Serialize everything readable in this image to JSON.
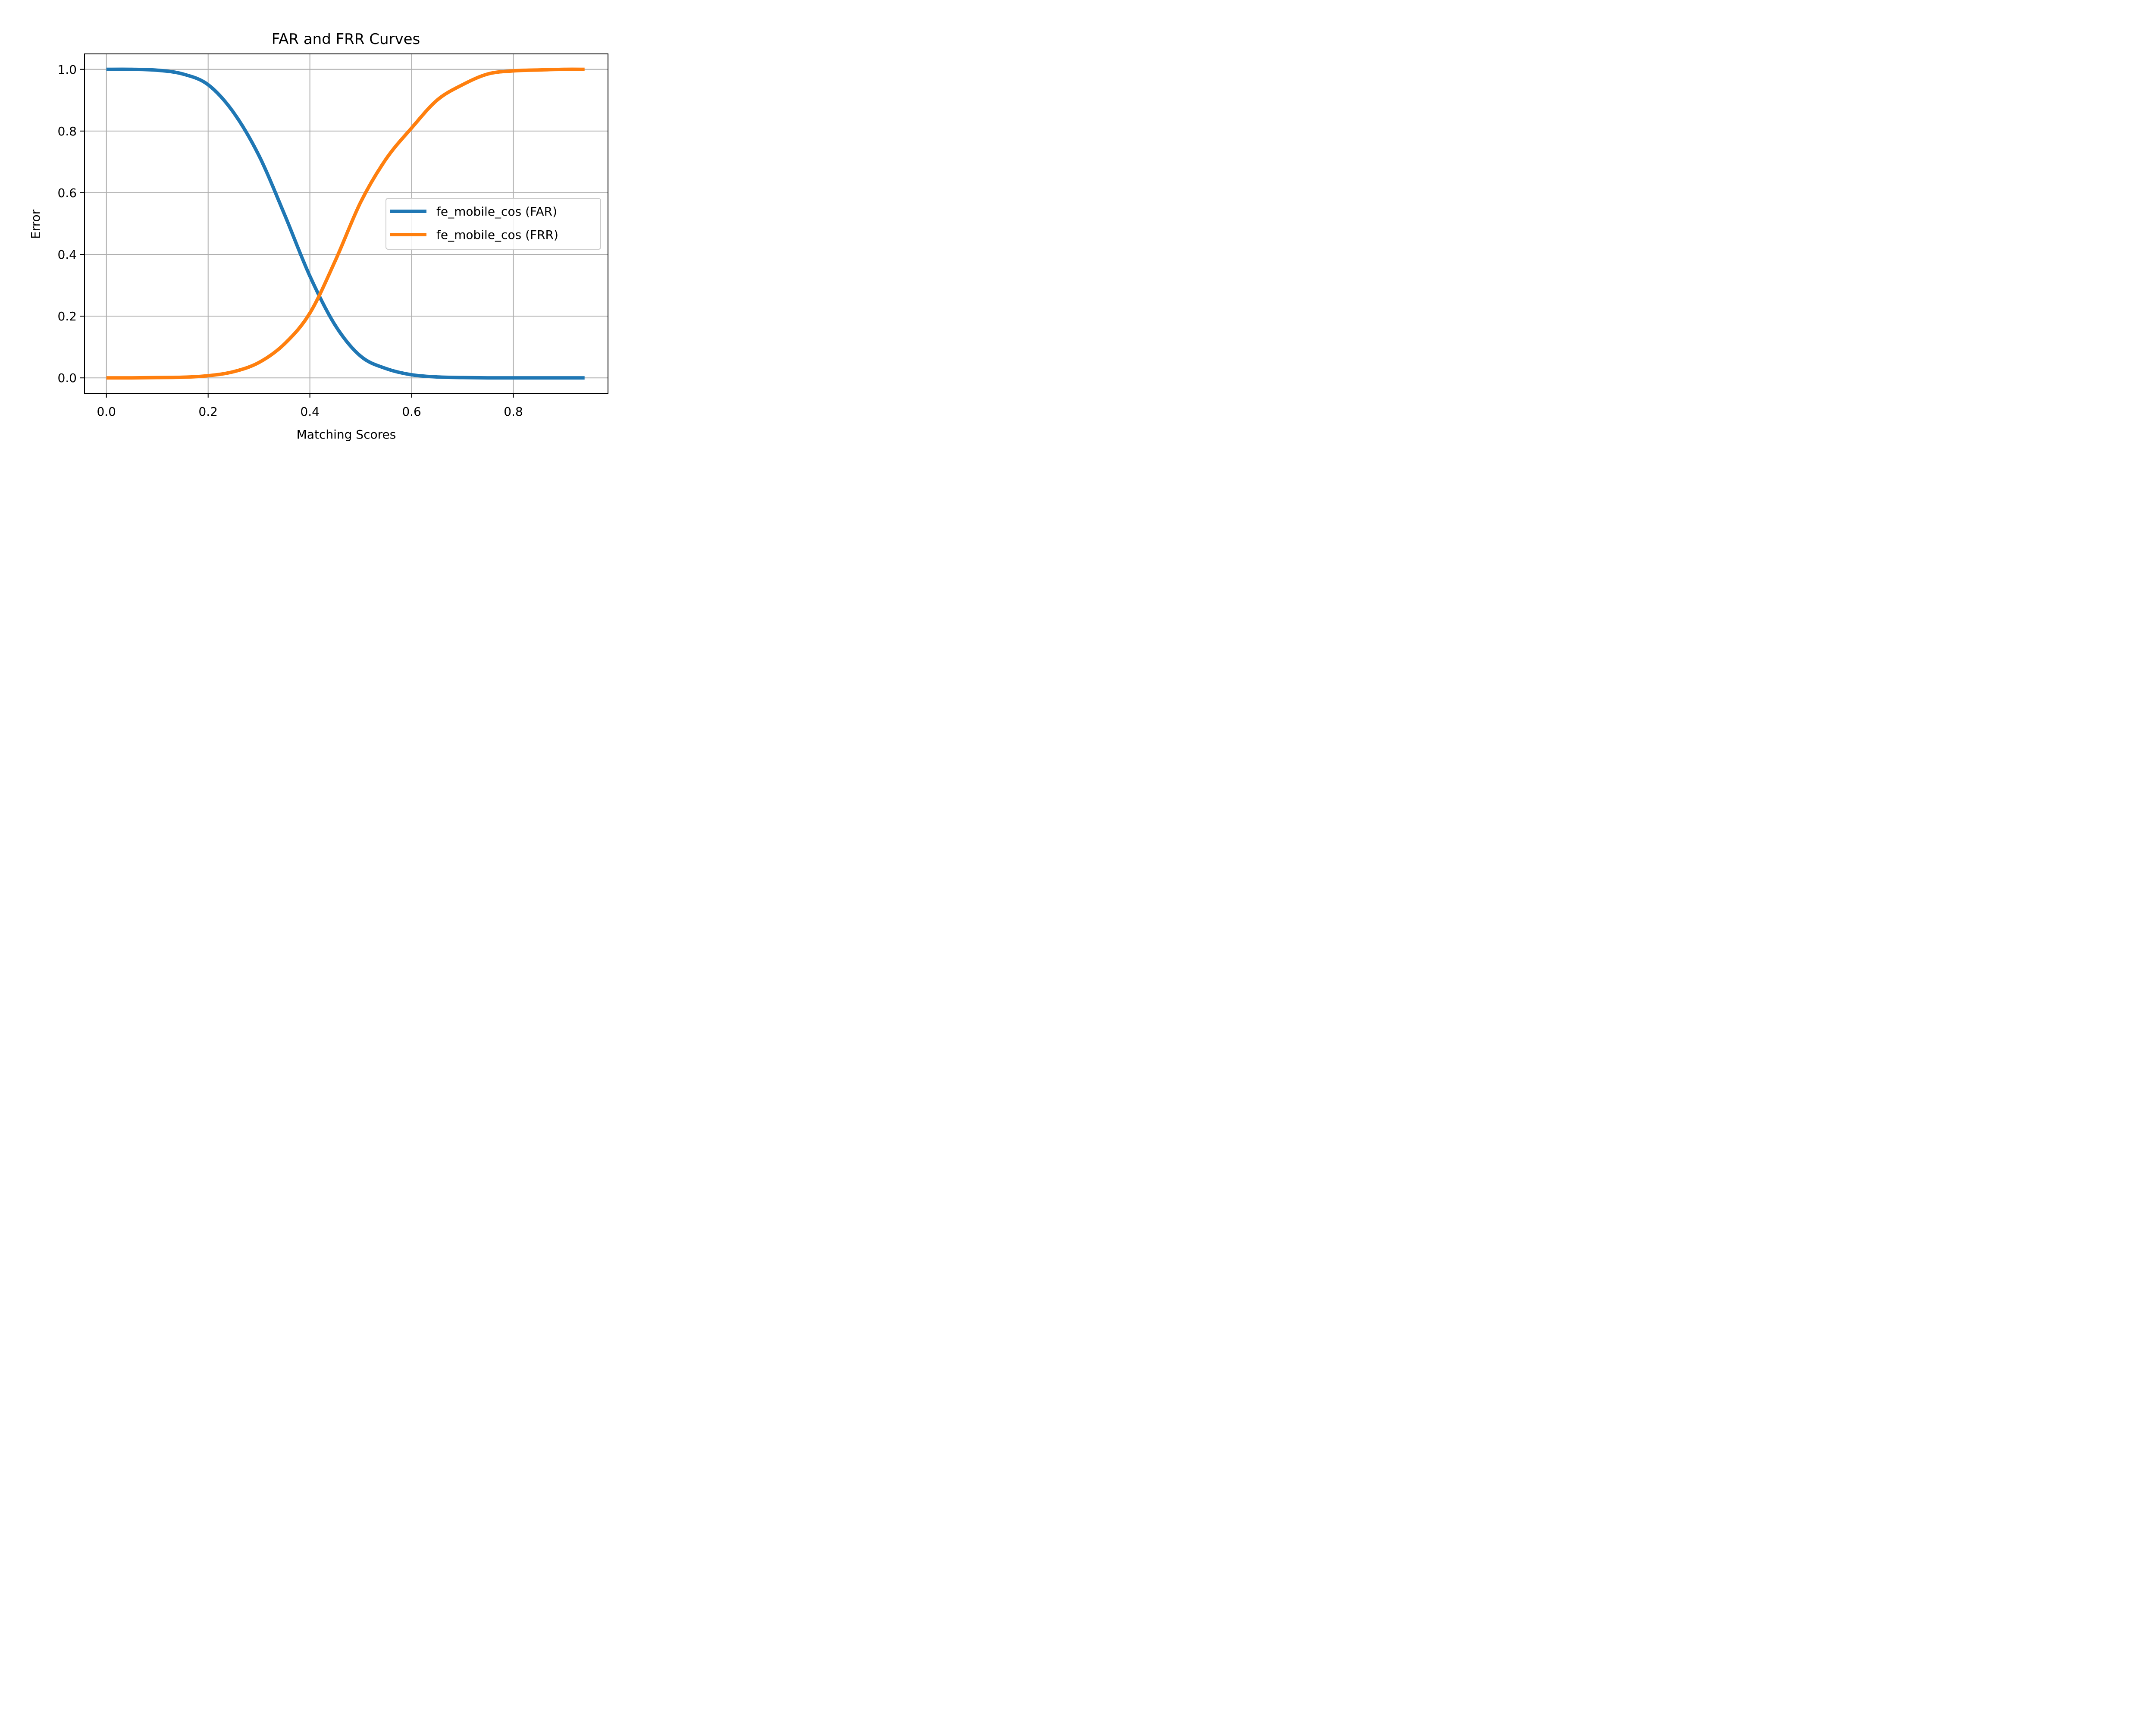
{
  "chart_data": {
    "type": "line",
    "title": "FAR and FRR Curves",
    "xlabel": "Matching Scores",
    "ylabel": "Error",
    "xlim": [
      -0.043,
      0.986
    ],
    "ylim": [
      -0.05,
      1.05
    ],
    "xticks": [
      0.0,
      0.2,
      0.4,
      0.6,
      0.8
    ],
    "xtick_labels": [
      "0.0",
      "0.2",
      "0.4",
      "0.6",
      "0.8"
    ],
    "yticks": [
      0.0,
      0.2,
      0.4,
      0.6,
      0.8,
      1.0
    ],
    "ytick_labels": [
      "0.0",
      "0.2",
      "0.4",
      "0.6",
      "0.8",
      "1.0"
    ],
    "grid": true,
    "legend_position": "center-right",
    "series": [
      {
        "name": "fe_mobile_cos (FAR)",
        "color": "#1f77b4",
        "x": [
          0.0,
          0.05,
          0.1,
          0.15,
          0.2,
          0.25,
          0.3,
          0.35,
          0.4,
          0.45,
          0.5,
          0.55,
          0.6,
          0.65,
          0.7,
          0.75,
          0.8,
          0.85,
          0.9,
          0.94
        ],
        "y": [
          1.0,
          1.0,
          0.997,
          0.985,
          0.95,
          0.86,
          0.72,
          0.53,
          0.33,
          0.17,
          0.07,
          0.03,
          0.01,
          0.003,
          0.001,
          0.0,
          0.0,
          0.0,
          0.0,
          0.0
        ]
      },
      {
        "name": "fe_mobile_cos (FRR)",
        "color": "#ff7f0e",
        "x": [
          0.0,
          0.05,
          0.1,
          0.15,
          0.2,
          0.25,
          0.3,
          0.35,
          0.4,
          0.45,
          0.5,
          0.55,
          0.6,
          0.65,
          0.7,
          0.75,
          0.8,
          0.85,
          0.9,
          0.94
        ],
        "y": [
          0.0,
          0.0,
          0.001,
          0.002,
          0.007,
          0.02,
          0.05,
          0.11,
          0.21,
          0.38,
          0.57,
          0.71,
          0.81,
          0.9,
          0.95,
          0.985,
          0.995,
          0.998,
          1.0,
          1.0
        ]
      }
    ]
  }
}
